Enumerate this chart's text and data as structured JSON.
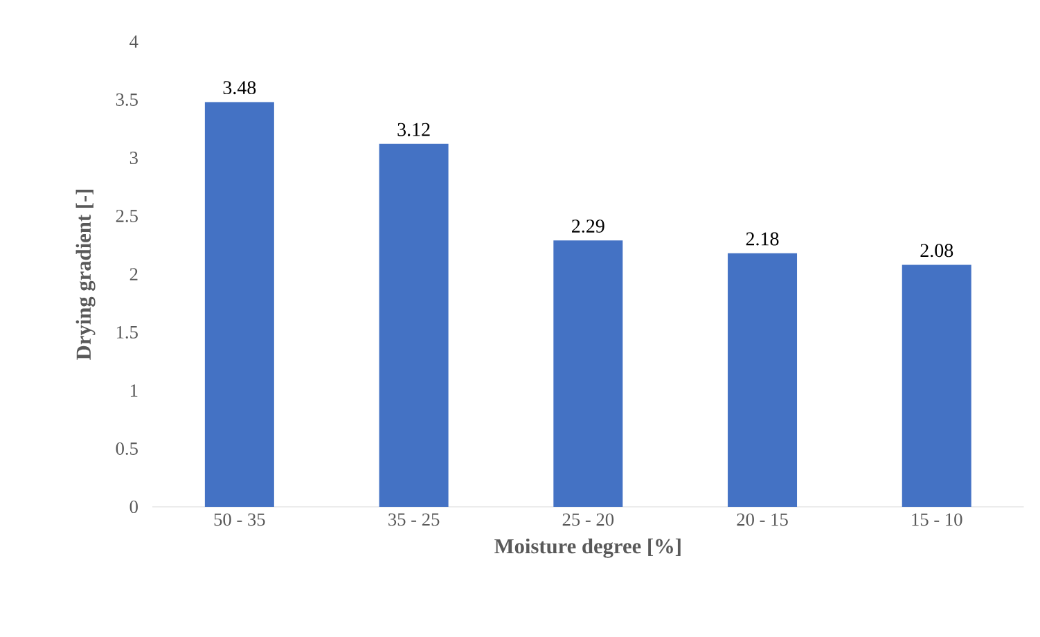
{
  "chart_data": {
    "type": "bar",
    "xlabel": "Moisture degree [%]",
    "ylabel": "Drying gradient [-]",
    "categories": [
      "50 - 35",
      "35 - 25",
      "25 - 20",
      "20 - 15",
      "15 - 10"
    ],
    "values": [
      3.48,
      3.12,
      2.29,
      2.18,
      2.08
    ],
    "color": "#4472c4",
    "ylim": [
      0,
      4
    ],
    "yticks": [
      0,
      0.5,
      1,
      1.5,
      2,
      2.5,
      3,
      3.5,
      4
    ],
    "data_labels": true
  }
}
